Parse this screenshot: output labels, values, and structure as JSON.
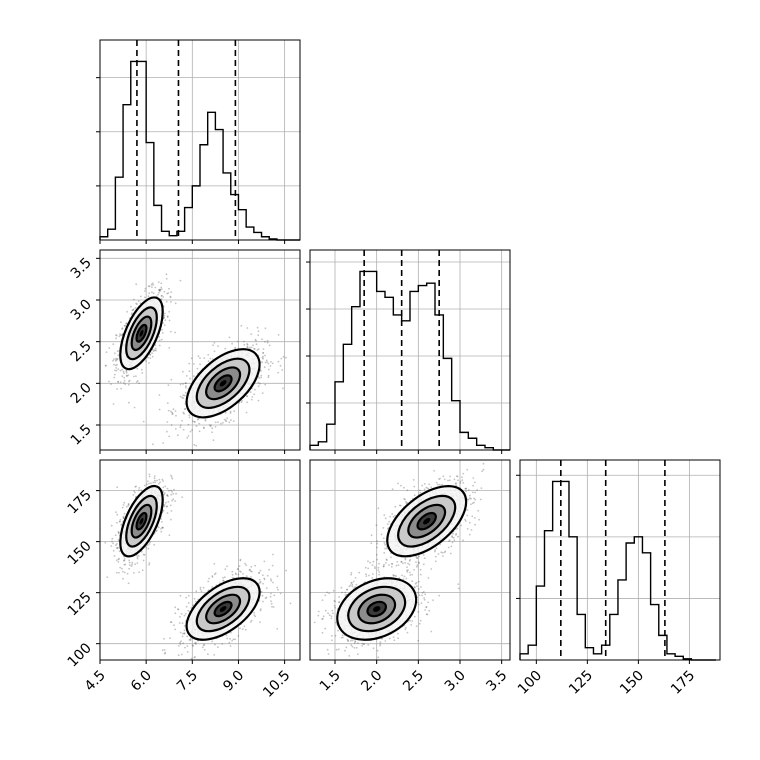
{
  "chart_data": {
    "type": "scatter",
    "title": "",
    "grid": true,
    "params": [
      {
        "xlim": [
          4.5,
          11.0
        ],
        "ticks": [
          4.5,
          6.0,
          7.5,
          9.0,
          10.5
        ],
        "tick_labels": [
          "4.5",
          "6.0",
          "7.5",
          "9.0",
          "10.5"
        ],
        "quantiles": [
          5.7,
          7.05,
          8.9
        ]
      },
      {
        "xlim": [
          1.2,
          3.6
        ],
        "ticks": [
          1.5,
          2.0,
          2.5,
          3.0,
          3.5
        ],
        "tick_labels": [
          "1.5",
          "2.0",
          "2.5",
          "3.0",
          "3.5"
        ],
        "quantiles": [
          1.85,
          2.3,
          2.75
        ]
      },
      {
        "xlim": [
          92,
          190
        ],
        "ticks": [
          100,
          125,
          150,
          175
        ],
        "tick_labels": [
          "100",
          "125",
          "150",
          "175"
        ],
        "quantiles": [
          112,
          134,
          163
        ]
      }
    ],
    "histograms": [
      {
        "edges": [
          4.5,
          4.75,
          5.0,
          5.25,
          5.5,
          5.75,
          6.0,
          6.25,
          6.5,
          6.75,
          7.0,
          7.25,
          7.5,
          7.75,
          8.0,
          8.25,
          8.5,
          8.75,
          9.0,
          9.25,
          9.5,
          9.75,
          10.0,
          10.25,
          10.5,
          10.75,
          11.0
        ],
        "counts": [
          3,
          10,
          58,
          125,
          165,
          165,
          90,
          32,
          8,
          4,
          8,
          30,
          50,
          88,
          118,
          102,
          62,
          42,
          28,
          12,
          7,
          3,
          1,
          0,
          0,
          0
        ]
      },
      {
        "edges": [
          1.2,
          1.3,
          1.4,
          1.5,
          1.6,
          1.7,
          1.8,
          1.9,
          2.0,
          2.1,
          2.2,
          2.3,
          2.4,
          2.5,
          2.6,
          2.7,
          2.8,
          2.9,
          3.0,
          3.1,
          3.2,
          3.3,
          3.4,
          3.5,
          3.6
        ],
        "counts": [
          4,
          7,
          22,
          58,
          90,
          122,
          152,
          152,
          135,
          130,
          115,
          110,
          135,
          140,
          142,
          115,
          78,
          42,
          15,
          10,
          4,
          2,
          0,
          0
        ]
      },
      {
        "edges": [
          92,
          96,
          100,
          104,
          108,
          112,
          116,
          120,
          124,
          128,
          132,
          136,
          140,
          144,
          148,
          152,
          156,
          160,
          164,
          168,
          172,
          176,
          180,
          184,
          188
        ],
        "counts": [
          5,
          12,
          60,
          105,
          145,
          145,
          100,
          37,
          10,
          5,
          12,
          37,
          65,
          95,
          100,
          87,
          45,
          20,
          5,
          3,
          1,
          0,
          0,
          0
        ]
      }
    ],
    "pairs": [
      {
        "x_param": 0,
        "y_param": 1,
        "ylim": [
          1.2,
          3.6
        ],
        "yticks": [
          1.5,
          2.0,
          2.5,
          3.0,
          3.5
        ],
        "ytick_labels": [
          "1.5",
          "2.0",
          "2.5",
          "3.0",
          "3.5"
        ],
        "modes": [
          {
            "cx": 5.85,
            "cy": 2.6,
            "sx": 0.32,
            "sy": 0.2,
            "rho": 0.6
          },
          {
            "cx": 8.5,
            "cy": 2.0,
            "sx": 0.55,
            "sy": 0.19,
            "rho": 0.55
          }
        ]
      },
      {
        "x_param": 0,
        "y_param": 2,
        "ylim": [
          92,
          190
        ],
        "yticks": [
          100,
          125,
          150,
          175
        ],
        "ytick_labels": [
          "100",
          "125",
          "150",
          "175"
        ],
        "modes": [
          {
            "cx": 5.85,
            "cy": 160,
            "sx": 0.32,
            "sy": 8,
            "rho": 0.6
          },
          {
            "cx": 8.5,
            "cy": 117,
            "sx": 0.55,
            "sy": 7,
            "rho": 0.55
          }
        ]
      },
      {
        "x_param": 1,
        "y_param": 2,
        "ylim": [
          92,
          190
        ],
        "yticks": [
          100,
          125,
          150,
          175
        ],
        "ytick_labels": [
          "100",
          "125",
          "150",
          "175"
        ],
        "modes": [
          {
            "cx": 2.6,
            "cy": 160,
            "sx": 0.22,
            "sy": 8,
            "rho": 0.55
          },
          {
            "cx": 2.0,
            "cy": 117,
            "sx": 0.22,
            "sy": 7,
            "rho": 0.3
          }
        ]
      }
    ]
  }
}
